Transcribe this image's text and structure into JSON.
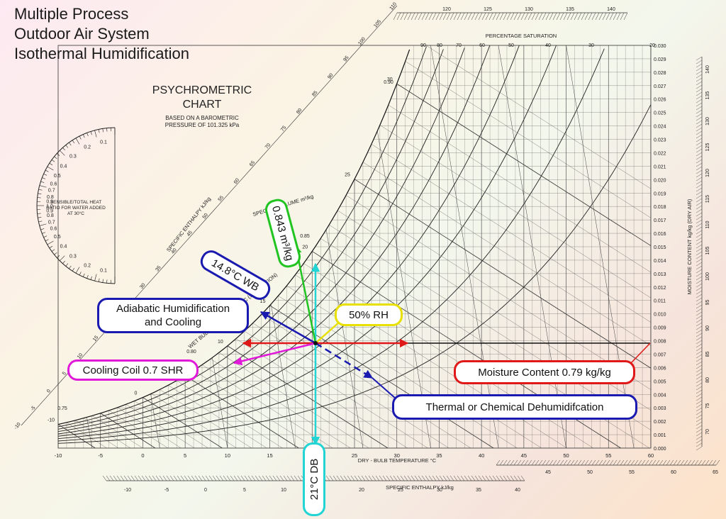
{
  "heading": {
    "line1": "Multiple Process",
    "line2": "Outdoor Air System",
    "line3": "Isothermal Humidification"
  },
  "chart": {
    "title_line1": "PSYCHROMETRIC",
    "title_line2": "CHART",
    "subtitle_line1": "BASED ON A BAROMETRIC",
    "subtitle_line2": "PRESSURE OF 101.325 kPa",
    "x_axis_label": "DRY - BULB TEMPERATURE  °C",
    "x_ticks": [
      "-10",
      "-5",
      "0",
      "5",
      "10",
      "15",
      "20",
      "25",
      "30",
      "35",
      "40",
      "45",
      "50",
      "55",
      "60"
    ],
    "y_axis_label": "MOISTURE CONTENT  kg/kg  (DRY AIR)",
    "y_ticks": [
      "0.000",
      "0.001",
      "0.002",
      "0.003",
      "0.004",
      "0.005",
      "0.006",
      "0.007",
      "0.008",
      "0.009",
      "0.010",
      "0.011",
      "0.012",
      "0.013",
      "0.014",
      "0.015",
      "0.016",
      "0.017",
      "0.018",
      "0.019",
      "0.020",
      "0.021",
      "0.022",
      "0.023",
      "0.024",
      "0.025",
      "0.026",
      "0.027",
      "0.028",
      "0.029",
      "0.030"
    ],
    "saturation_label": "PERCENTAGE SATURATION",
    "saturation_ticks": [
      "90",
      "80",
      "70",
      "60",
      "50",
      "40",
      "30",
      "20"
    ],
    "enthalpy_label": "SPECIFIC ENTHALPY  kJ/kg",
    "enthalpy_bottom_ticks": [
      "-10",
      "-5",
      "0",
      "5",
      "10",
      "15",
      "20",
      "25",
      "30",
      "35",
      "40"
    ],
    "enthalpy_lower_right_ticks": [
      "45",
      "50",
      "55",
      "60",
      "65"
    ],
    "enthalpy_top_ticks": [
      "120",
      "125",
      "130",
      "135",
      "140"
    ],
    "enthalpy_right_ticks": [
      "140",
      "135",
      "130",
      "125",
      "120",
      "115",
      "110",
      "105",
      "100",
      "95",
      "90",
      "85",
      "80",
      "75",
      "70"
    ],
    "enthalpy_diag_ticks": [
      "-10",
      "-5",
      "0",
      "5",
      "10",
      "15",
      "20",
      "25",
      "30",
      "35",
      "40",
      "45",
      "50",
      "55",
      "60",
      "65",
      "70",
      "75",
      "80",
      "85",
      "90",
      "95",
      "100",
      "105",
      "110"
    ],
    "specific_volume_label": "SPECIFIC VOLUME  m³/kg",
    "specific_volume_ticks": [
      "0.75",
      "0.80",
      "0.85",
      "0.90"
    ],
    "wet_bulb_ticks": [
      "-10",
      "0",
      "10",
      "15",
      "20",
      "25",
      "30"
    ],
    "wet_bulb_label": "WET BULB TEMPERATURE  °C  (SATURATION)",
    "shr_label": "SENSIBLE/TOTAL HEAT RATIO FOR WATER ADDED AT 30°C",
    "shr_ticks": [
      "0.1",
      "0.2",
      "0.3",
      "0.4",
      "0.5",
      "0.6",
      "0.7",
      "0.8",
      "0.9",
      "1.0"
    ]
  },
  "callouts": {
    "specific_volume": "0.843 m³/kg",
    "wet_bulb": "14.8°C WB",
    "adiabatic": "Adiabatic Humidification and Cooling",
    "adiabatic_line1": "Adiabatic Humidification",
    "adiabatic_line2": "and Cooling",
    "relative_humidity": "50% RH",
    "cooling_coil": "Cooling Coil 0.7 SHR",
    "moisture": "Moisture Content 0.79 kg/kg",
    "dehumid": "Thermal or Chemical Dehumidifcation",
    "dry_bulb": "21°C DB"
  },
  "colors": {
    "volume": "#22c422",
    "wet_bulb": "#1a1ab0",
    "rh": "#e8e000",
    "cooling": "#e01ad8",
    "moisture": "#e01818",
    "dehumid": "#1a1ab0",
    "dry_bulb": "#22d4d4"
  }
}
